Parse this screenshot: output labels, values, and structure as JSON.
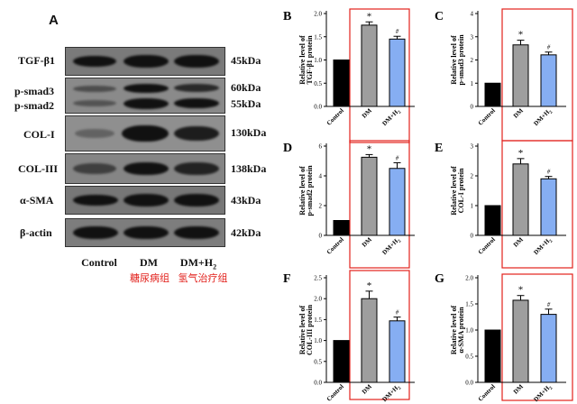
{
  "panel_a": {
    "letter": "A",
    "rows": [
      {
        "label": "TGF-β1",
        "kda": [
          "45kDa"
        ]
      },
      {
        "label": "p-smad3",
        "label2": "p-smad2",
        "kda": [
          "60kDa",
          "55kDa"
        ]
      },
      {
        "label": "COL-I",
        "kda": [
          "130kDa"
        ]
      },
      {
        "label": "COL-III",
        "kda": [
          "138kDa"
        ]
      },
      {
        "label": "α-SMA",
        "kda": [
          "43kDa"
        ]
      },
      {
        "label": "β-actin",
        "kda": [
          "42kDa"
        ]
      }
    ],
    "lanes": [
      "Control",
      "DM",
      "DM+H2"
    ],
    "lanes_cn": [
      "",
      "糖尿病组",
      "氢气治疗组"
    ]
  },
  "chart_data": [
    {
      "letter": "B",
      "type": "bar",
      "categories": [
        "Control",
        "DM",
        "DM+H2"
      ],
      "values": [
        1.0,
        1.75,
        1.45
      ],
      "errors": [
        0,
        0.07,
        0.06
      ],
      "ylabel": "Relative level of TGF-β1 protein",
      "ylim": [
        0,
        2.0
      ],
      "ticks": [
        "0.0",
        "0.5",
        "1.0",
        "1.5",
        "2.0"
      ],
      "tick_values": [
        0,
        0.5,
        1.0,
        1.5,
        2.0
      ],
      "marks": [
        "",
        "*",
        "#"
      ],
      "colors": [
        "#000000",
        "#9e9e9e",
        "#86aef2"
      ]
    },
    {
      "letter": "C",
      "type": "bar",
      "categories": [
        "Control",
        "DM",
        "DM+H2"
      ],
      "values": [
        1.0,
        2.65,
        2.22
      ],
      "errors": [
        0,
        0.2,
        0.12
      ],
      "ylabel": "Relative level of p-smad3 protein",
      "ylim": [
        0,
        4
      ],
      "ticks": [
        "0",
        "1",
        "2",
        "3",
        "4"
      ],
      "tick_values": [
        0,
        1,
        2,
        3,
        4
      ],
      "marks": [
        "",
        "*",
        "#"
      ],
      "colors": [
        "#000000",
        "#9e9e9e",
        "#86aef2"
      ]
    },
    {
      "letter": "D",
      "type": "bar",
      "categories": [
        "Control",
        "DM",
        "DM+H2"
      ],
      "values": [
        1.0,
        5.25,
        4.5
      ],
      "errors": [
        0,
        0.18,
        0.38
      ],
      "ylabel": "Relative level of p-smad2 protein",
      "ylim": [
        0,
        6
      ],
      "ticks": [
        "0",
        "2",
        "4",
        "6"
      ],
      "tick_values": [
        0,
        2,
        4,
        6
      ],
      "marks": [
        "",
        "*",
        "#"
      ],
      "colors": [
        "#000000",
        "#9e9e9e",
        "#86aef2"
      ]
    },
    {
      "letter": "E",
      "type": "bar",
      "categories": [
        "Control",
        "DM",
        "DM+H2"
      ],
      "values": [
        1.0,
        2.4,
        1.9
      ],
      "errors": [
        0,
        0.18,
        0.08
      ],
      "ylabel": "Relative level of COL-I protein",
      "ylim": [
        0,
        3
      ],
      "ticks": [
        "0",
        "1",
        "2",
        "3"
      ],
      "tick_values": [
        0,
        1,
        2,
        3
      ],
      "marks": [
        "",
        "*",
        "#"
      ],
      "colors": [
        "#000000",
        "#9e9e9e",
        "#86aef2"
      ]
    },
    {
      "letter": "F",
      "type": "bar",
      "categories": [
        "Control",
        "DM",
        "DM+H2"
      ],
      "values": [
        1.0,
        2.0,
        1.47
      ],
      "errors": [
        0,
        0.18,
        0.09
      ],
      "ylabel": "Relative level of COL-III protein",
      "ylim": [
        0,
        2.5
      ],
      "ticks": [
        "0.0",
        "0.5",
        "1.0",
        "1.5",
        "2.0",
        "2.5"
      ],
      "tick_values": [
        0,
        0.5,
        1.0,
        1.5,
        2.0,
        2.5
      ],
      "marks": [
        "",
        "*",
        "#"
      ],
      "colors": [
        "#000000",
        "#9e9e9e",
        "#86aef2"
      ]
    },
    {
      "letter": "G",
      "type": "bar",
      "categories": [
        "Control",
        "DM",
        "DM+H2"
      ],
      "values": [
        1.0,
        1.57,
        1.3
      ],
      "errors": [
        0,
        0.09,
        0.1
      ],
      "ylabel": "Relative level of α-SMA protein",
      "ylim": [
        0,
        2.0
      ],
      "ticks": [
        "0.0",
        "0.5",
        "1.0",
        "1.5",
        "2.0"
      ],
      "tick_values": [
        0,
        0.5,
        1.0,
        1.5,
        2.0
      ],
      "marks": [
        "",
        "*",
        "#"
      ],
      "colors": [
        "#000000",
        "#9e9e9e",
        "#86aef2"
      ]
    }
  ],
  "colors": {
    "highlight_box": "#e2211c",
    "cn_text": "#e2211c"
  }
}
